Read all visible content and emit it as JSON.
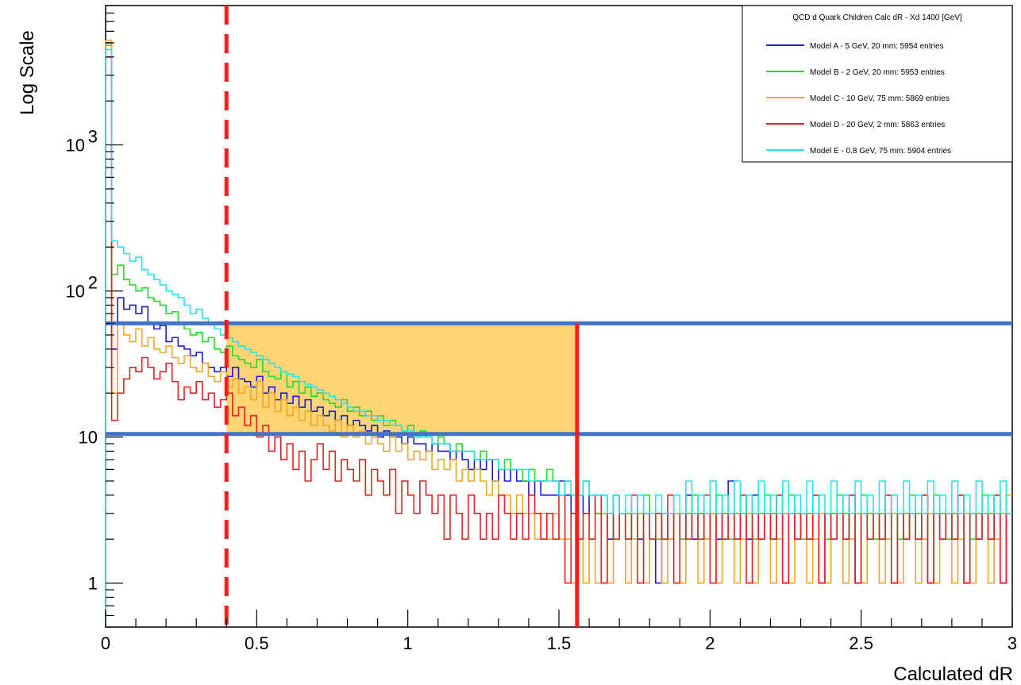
{
  "chart_data": {
    "type": "line",
    "title": "",
    "xlabel": "Calculated dR",
    "ylabel": "Log Scale",
    "xlim": [
      0,
      3
    ],
    "ylim": [
      0.5,
      9000
    ],
    "yscale": "log",
    "grid": false,
    "legend": {
      "placement": "top-right",
      "title": "QCD d Quark Children Calc dR - Xd 1400 [GeV]"
    },
    "x_ticks": [
      {
        "value": 0,
        "label": "0"
      },
      {
        "value": 0.5,
        "label": "0.5"
      },
      {
        "value": 1,
        "label": "1"
      },
      {
        "value": 1.5,
        "label": "1.5"
      },
      {
        "value": 2,
        "label": "2"
      },
      {
        "value": 2.5,
        "label": "2.5"
      },
      {
        "value": 3,
        "label": "3"
      }
    ],
    "y_ticks": [
      {
        "value": 1,
        "label": "1",
        "sup": ""
      },
      {
        "value": 10,
        "label": "10",
        "sup": ""
      },
      {
        "value": 100,
        "label": "10",
        "sup": "2"
      },
      {
        "value": 1000,
        "label": "10",
        "sup": "3"
      }
    ],
    "bin_width": 0.02,
    "series": [
      {
        "name": "Model A - 5 GeV, 20 mm: 5954 entries",
        "color": "#1a1adb",
        "values": [
          5000,
          40,
          90,
          75,
          80,
          70,
          78,
          60,
          55,
          58,
          45,
          48,
          42,
          40,
          36,
          38,
          32,
          30,
          28,
          30,
          26,
          30,
          25,
          24,
          22,
          26,
          20,
          22,
          18,
          20,
          17,
          19,
          16,
          18,
          15,
          16,
          14,
          15,
          13,
          14,
          12,
          13,
          12,
          11,
          12,
          10,
          11,
          10,
          10,
          9,
          10,
          9,
          9,
          8,
          9,
          8,
          8,
          7,
          8,
          7,
          6,
          7,
          6,
          7,
          5,
          6,
          5,
          6,
          5,
          5,
          4,
          5,
          4,
          4,
          4,
          5,
          4,
          3,
          4,
          3,
          4,
          3,
          3,
          2,
          4,
          3,
          2,
          3,
          2,
          3,
          2,
          1,
          3,
          2,
          3,
          2,
          4,
          2,
          3,
          2,
          3,
          2,
          3,
          5,
          2,
          3,
          2,
          4,
          2,
          3,
          2,
          4,
          1,
          3,
          2,
          3,
          2,
          4,
          1,
          3,
          2,
          3,
          2,
          4,
          1,
          3,
          2,
          3,
          2,
          4,
          1,
          3,
          2,
          3,
          2,
          4,
          1,
          3,
          2,
          3,
          2,
          4,
          1,
          3,
          2,
          3,
          2,
          4,
          1,
          3
        ]
      },
      {
        "name": "Model B - 2 GeV, 20 mm: 5953 entries",
        "color": "#22dd22",
        "values": [
          4800,
          130,
          150,
          120,
          110,
          100,
          105,
          90,
          85,
          80,
          70,
          72,
          60,
          55,
          50,
          52,
          45,
          48,
          40,
          38,
          42,
          36,
          34,
          32,
          30,
          34,
          28,
          26,
          25,
          28,
          22,
          24,
          20,
          22,
          19,
          20,
          18,
          17,
          16,
          18,
          15,
          16,
          14,
          15,
          13,
          14,
          12,
          13,
          12,
          11,
          12,
          10,
          11,
          10,
          9,
          10,
          9,
          8,
          9,
          8,
          8,
          7,
          8,
          7,
          7,
          6,
          7,
          6,
          6,
          5,
          6,
          5,
          5,
          6,
          5,
          4,
          5,
          4,
          4,
          5,
          4,
          3,
          4,
          3,
          4,
          3,
          3,
          2,
          3,
          4,
          3,
          2,
          3,
          2,
          3,
          2,
          3,
          4,
          3,
          2,
          3,
          4,
          3,
          2,
          3,
          4,
          3,
          2,
          3,
          4,
          3,
          2,
          3,
          4,
          3,
          2,
          3,
          4,
          3,
          2,
          3,
          4,
          3,
          2,
          3,
          4,
          3,
          2,
          3,
          4,
          3,
          2,
          3,
          4,
          3,
          2,
          3,
          4,
          3,
          2,
          3,
          4,
          3,
          2,
          3,
          4,
          3,
          2,
          3,
          4
        ]
      },
      {
        "name": "Model C - 10 GeV, 75 mm: 5869 entries",
        "color": "#f5a623",
        "values": [
          5200,
          20,
          60,
          50,
          45,
          55,
          42,
          48,
          40,
          38,
          42,
          35,
          32,
          36,
          30,
          28,
          32,
          26,
          24,
          28,
          22,
          25,
          20,
          22,
          18,
          24,
          16,
          20,
          15,
          18,
          14,
          16,
          13,
          15,
          12,
          14,
          12,
          11,
          13,
          10,
          12,
          10,
          11,
          9,
          10,
          9,
          8,
          10,
          8,
          9,
          7,
          8,
          7,
          8,
          6,
          7,
          6,
          7,
          5,
          6,
          5,
          6,
          5,
          4,
          5,
          4,
          4,
          3,
          4,
          3,
          3,
          2,
          3,
          2,
          3,
          2,
          2,
          1,
          2,
          1,
          2,
          1,
          3,
          1,
          2,
          3,
          1,
          2,
          3,
          1,
          2,
          3,
          1,
          2,
          3,
          1,
          2,
          3,
          1,
          2,
          3,
          1,
          2,
          3,
          1,
          2,
          3,
          1,
          2,
          3,
          1,
          2,
          3,
          1,
          2,
          3,
          1,
          2,
          3,
          1,
          2,
          3,
          1,
          2,
          3,
          1,
          2,
          3,
          1,
          2,
          3,
          1,
          2,
          3,
          1,
          2,
          3,
          1,
          2,
          3,
          1,
          2,
          3,
          1,
          2,
          3,
          1,
          2,
          3,
          4
        ]
      },
      {
        "name": "Model D - 20 GeV, 2 mm: 5863 entries",
        "color": "#e62020",
        "values": [
          4000,
          13,
          20,
          25,
          30,
          28,
          35,
          30,
          25,
          28,
          32,
          24,
          18,
          22,
          20,
          24,
          18,
          20,
          16,
          18,
          20,
          14,
          16,
          12,
          14,
          10,
          12,
          8,
          10,
          7,
          9,
          6,
          8,
          5,
          7,
          9,
          6,
          8,
          5,
          7,
          6,
          5,
          7,
          4,
          6,
          5,
          4,
          6,
          3,
          5,
          4,
          3,
          5,
          4,
          3,
          4,
          2,
          4,
          3,
          2,
          4,
          3,
          2,
          3,
          2,
          4,
          3,
          2,
          3,
          2,
          4,
          3,
          2,
          3,
          2,
          4,
          1,
          3,
          2,
          3,
          2,
          4,
          1,
          3,
          2,
          3,
          2,
          4,
          1,
          3,
          2,
          3,
          2,
          4,
          1,
          3,
          2,
          3,
          2,
          4,
          1,
          3,
          2,
          3,
          2,
          4,
          1,
          3,
          2,
          3,
          2,
          4,
          1,
          3,
          2,
          3,
          2,
          4,
          1,
          3,
          2,
          3,
          2,
          4,
          1,
          3,
          2,
          3,
          2,
          4,
          1,
          3,
          2,
          3,
          2,
          4,
          1,
          3,
          2,
          3,
          2,
          4,
          1,
          3,
          2,
          3,
          2,
          4,
          1,
          3
        ]
      },
      {
        "name": "Model E - 0.8 GeV, 75 mm: 5904 entries",
        "color": "#22e5f0",
        "values": [
          4500,
          220,
          200,
          180,
          160,
          170,
          140,
          130,
          120,
          110,
          100,
          95,
          90,
          80,
          70,
          75,
          65,
          60,
          55,
          50,
          48,
          45,
          42,
          40,
          38,
          36,
          34,
          32,
          30,
          28,
          27,
          26,
          24,
          23,
          22,
          21,
          20,
          19,
          18,
          17,
          16,
          15,
          15,
          14,
          14,
          13,
          13,
          12,
          12,
          11,
          11,
          10,
          10,
          10,
          9,
          9,
          9,
          8,
          8,
          8,
          8,
          7,
          7,
          7,
          7,
          6,
          6,
          6,
          6,
          6,
          5,
          5,
          5,
          5,
          5,
          4,
          5,
          4,
          4,
          5,
          4,
          4,
          4,
          3,
          4,
          3,
          4,
          3,
          4,
          3,
          3,
          4,
          3,
          3,
          4,
          3,
          5,
          3,
          4,
          3,
          5,
          3,
          4,
          3,
          5,
          3,
          4,
          3,
          5,
          3,
          4,
          3,
          5,
          3,
          4,
          3,
          5,
          3,
          4,
          3,
          5,
          3,
          4,
          3,
          5,
          3,
          4,
          3,
          5,
          3,
          4,
          3,
          5,
          3,
          4,
          3,
          5,
          3,
          4,
          3,
          5,
          3,
          4,
          3,
          5,
          3,
          4,
          3,
          5,
          3
        ]
      }
    ],
    "annotations": {
      "shaded_box": {
        "x0": 0.4,
        "x1": 1.56,
        "y0": 10.5,
        "y1": 60,
        "color": "#fccc5c"
      },
      "horizontal_lines": [
        {
          "y": 60,
          "color": "#4472c4"
        },
        {
          "y": 10.5,
          "color": "#4472c4"
        }
      ],
      "vertical_dashed": {
        "x": 0.4,
        "color": "#ff1a1a"
      },
      "vertical_solid": {
        "x": 1.56,
        "color": "#ff1a1a"
      }
    }
  }
}
